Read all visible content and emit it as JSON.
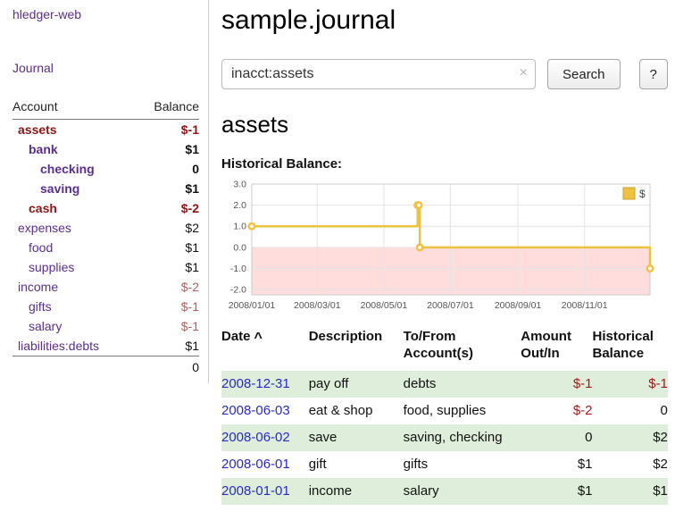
{
  "app": {
    "title": "hledger-web"
  },
  "sidebar": {
    "journal_link": "Journal",
    "header": {
      "account": "Account",
      "balance": "Balance"
    },
    "accounts": [
      {
        "name": "assets",
        "balance": "$-1",
        "depth": 1,
        "bold": true,
        "name_style": "red",
        "balance_style": "red"
      },
      {
        "name": "bank",
        "balance": "$1",
        "depth": 2,
        "bold": true,
        "name_style": null,
        "balance_style": null
      },
      {
        "name": "checking",
        "balance": "0",
        "depth": 3,
        "bold": true,
        "name_style": null,
        "balance_style": null
      },
      {
        "name": "saving",
        "balance": "$1",
        "depth": 3,
        "bold": true,
        "name_style": null,
        "balance_style": null
      },
      {
        "name": "cash",
        "balance": "$-2",
        "depth": 2,
        "bold": true,
        "name_style": "red",
        "balance_style": "red"
      },
      {
        "name": "expenses",
        "balance": "$2",
        "depth": 1,
        "bold": false,
        "name_style": null,
        "balance_style": null
      },
      {
        "name": "food",
        "balance": "$1",
        "depth": 2,
        "bold": false,
        "name_style": null,
        "balance_style": null
      },
      {
        "name": "supplies",
        "balance": "$1",
        "depth": 2,
        "bold": false,
        "name_style": null,
        "balance_style": null
      },
      {
        "name": "income",
        "balance": "$-2",
        "depth": 1,
        "bold": false,
        "name_style": null,
        "balance_style": "soft-red"
      },
      {
        "name": "gifts",
        "balance": "$-1",
        "depth": 2,
        "bold": false,
        "name_style": null,
        "balance_style": "soft-red"
      },
      {
        "name": "salary",
        "balance": "$-1",
        "depth": 2,
        "bold": false,
        "name_style": null,
        "balance_style": "soft-red"
      },
      {
        "name": "liabilities:debts",
        "balance": "$1",
        "depth": 1,
        "bold": false,
        "name_style": null,
        "balance_style": null
      }
    ],
    "total": "0"
  },
  "header": {
    "title": "sample.journal"
  },
  "search": {
    "value": "inacct:assets",
    "clear_icon": "×",
    "button_label": "Search",
    "help_label": "?"
  },
  "main": {
    "account_heading": "assets",
    "chart_label": "Historical Balance:"
  },
  "chart_data": {
    "type": "line",
    "step": true,
    "title": "Historical Balance",
    "series": [
      {
        "name": "$",
        "color": "#edc240",
        "swatch_border": "#c9a22a",
        "points": [
          [
            "2008-01-01",
            1
          ],
          [
            "2008-06-01",
            2
          ],
          [
            "2008-06-02",
            2
          ],
          [
            "2008-06-03",
            0
          ],
          [
            "2008-12-31",
            -1
          ]
        ]
      }
    ],
    "xrange": [
      "2008-01-01",
      "2008-12-31"
    ],
    "ylim": [
      -2.25,
      3
    ],
    "y_ticks": [
      3,
      2,
      1,
      0,
      -1,
      -2
    ],
    "x_ticks": [
      {
        "label": "2008/01/01",
        "date": "2008-01-01"
      },
      {
        "label": "2008/03/01",
        "date": "2008-03-01"
      },
      {
        "label": "2008/05/01",
        "date": "2008-05-01"
      },
      {
        "label": "2008/07/01",
        "date": "2008-07-01"
      },
      {
        "label": "2008/09/01",
        "date": "2008-09-01"
      },
      {
        "label": "2008/11/01",
        "date": "2008-11-01"
      }
    ],
    "negative_fill": "#ffdddd",
    "grid": true,
    "legend_position": "top-right"
  },
  "register": {
    "columns": {
      "date": "Date",
      "description": "Description",
      "tofrom": "To/From Account(s)",
      "amount": "Amount Out/In",
      "balance": "Historical Balance"
    },
    "sort_icon": "^",
    "rows": [
      {
        "date": "2008-12-31",
        "description": "pay off",
        "accounts": "debts",
        "amount": "$-1",
        "balance": "$-1"
      },
      {
        "date": "2008-06-03",
        "description": "eat & shop",
        "accounts": "food, supplies",
        "amount": "$-2",
        "balance": "0"
      },
      {
        "date": "2008-06-02",
        "description": "save",
        "accounts": "saving, checking",
        "amount": "0",
        "balance": "$2"
      },
      {
        "date": "2008-06-01",
        "description": "gift",
        "accounts": "gifts",
        "amount": "$1",
        "balance": "$2"
      },
      {
        "date": "2008-01-01",
        "description": "income",
        "accounts": "salary",
        "amount": "$1",
        "balance": "$1"
      }
    ]
  }
}
